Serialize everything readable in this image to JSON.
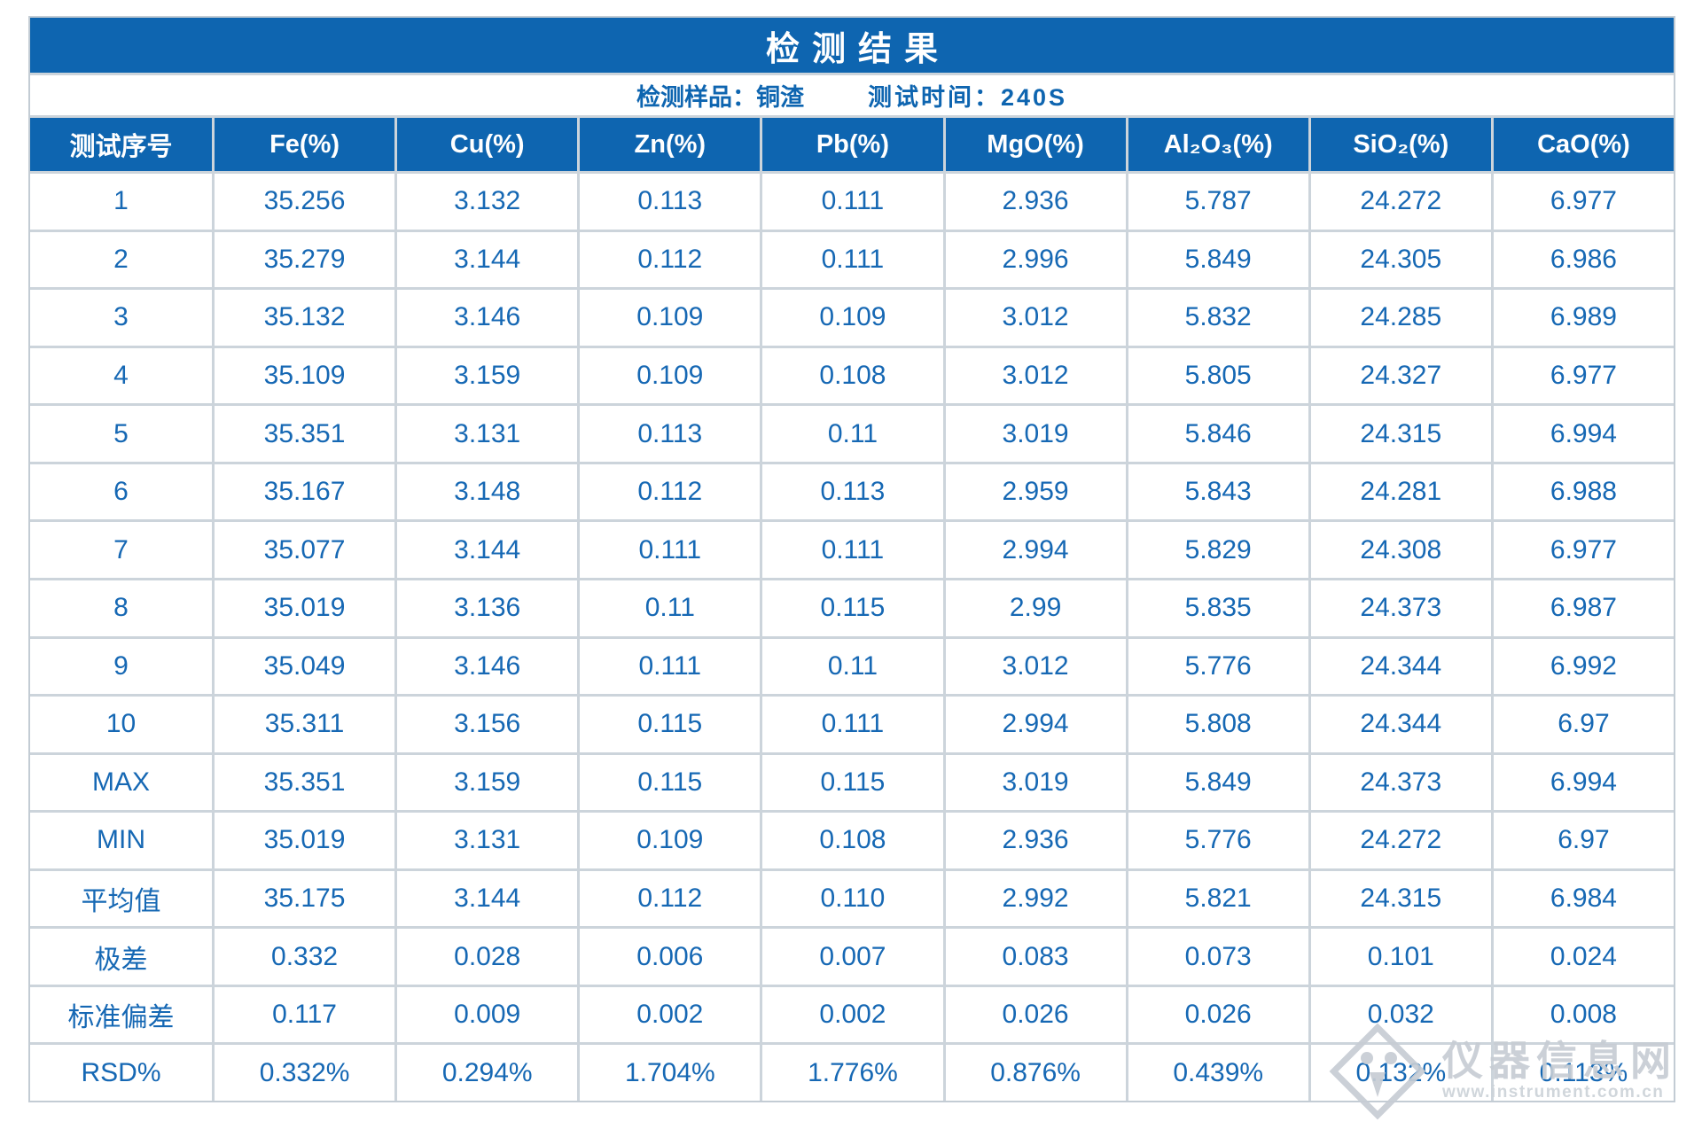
{
  "page": {
    "title": "检测结果"
  },
  "subtitle": {
    "sample": "检测样品：铜渣",
    "duration": "测试时间：240S"
  },
  "table": {
    "columns": [
      "测试序号",
      "Fe(%)",
      "Cu(%)",
      "Zn(%)",
      "Pb(%)",
      "MgO(%)",
      "Al₂O₃(%)",
      "SiO₂(%)",
      "CaO(%)"
    ],
    "rows": [
      [
        "1",
        "35.256",
        "3.132",
        "0.113",
        "0.111",
        "2.936",
        "5.787",
        "24.272",
        "6.977"
      ],
      [
        "2",
        "35.279",
        "3.144",
        "0.112",
        "0.111",
        "2.996",
        "5.849",
        "24.305",
        "6.986"
      ],
      [
        "3",
        "35.132",
        "3.146",
        "0.109",
        "0.109",
        "3.012",
        "5.832",
        "24.285",
        "6.989"
      ],
      [
        "4",
        "35.109",
        "3.159",
        "0.109",
        "0.108",
        "3.012",
        "5.805",
        "24.327",
        "6.977"
      ],
      [
        "5",
        "35.351",
        "3.131",
        "0.113",
        "0.11",
        "3.019",
        "5.846",
        "24.315",
        "6.994"
      ],
      [
        "6",
        "35.167",
        "3.148",
        "0.112",
        "0.113",
        "2.959",
        "5.843",
        "24.281",
        "6.988"
      ],
      [
        "7",
        "35.077",
        "3.144",
        "0.111",
        "0.111",
        "2.994",
        "5.829",
        "24.308",
        "6.977"
      ],
      [
        "8",
        "35.019",
        "3.136",
        "0.11",
        "0.115",
        "2.99",
        "5.835",
        "24.373",
        "6.987"
      ],
      [
        "9",
        "35.049",
        "3.146",
        "0.111",
        "0.11",
        "3.012",
        "5.776",
        "24.344",
        "6.992"
      ],
      [
        "10",
        "35.311",
        "3.156",
        "0.115",
        "0.111",
        "2.994",
        "5.808",
        "24.344",
        "6.97"
      ],
      [
        "MAX",
        "35.351",
        "3.159",
        "0.115",
        "0.115",
        "3.019",
        "5.849",
        "24.373",
        "6.994"
      ],
      [
        "MIN",
        "35.019",
        "3.131",
        "0.109",
        "0.108",
        "2.936",
        "5.776",
        "24.272",
        "6.97"
      ],
      [
        "平均值",
        "35.175",
        "3.144",
        "0.112",
        "0.110",
        "2.992",
        "5.821",
        "24.315",
        "6.984"
      ],
      [
        "极差",
        "0.332",
        "0.028",
        "0.006",
        "0.007",
        "0.083",
        "0.073",
        "0.101",
        "0.024"
      ],
      [
        "标准偏差",
        "0.117",
        "0.009",
        "0.002",
        "0.002",
        "0.026",
        "0.026",
        "0.032",
        "0.008"
      ],
      [
        "RSD%",
        "0.332%",
        "0.294%",
        "1.704%",
        "1.776%",
        "0.876%",
        "0.439%",
        "0.132%",
        "0.113%"
      ]
    ]
  },
  "watermark": {
    "site_name": "仪器信息网",
    "site_url": "www.instrument.com.cn"
  },
  "colors": {
    "primary_blue": "#0e65b0",
    "text_blue": "#1668b4",
    "grid_gray": "#ccd4db",
    "watermark_gray": "#c7cdd4"
  }
}
